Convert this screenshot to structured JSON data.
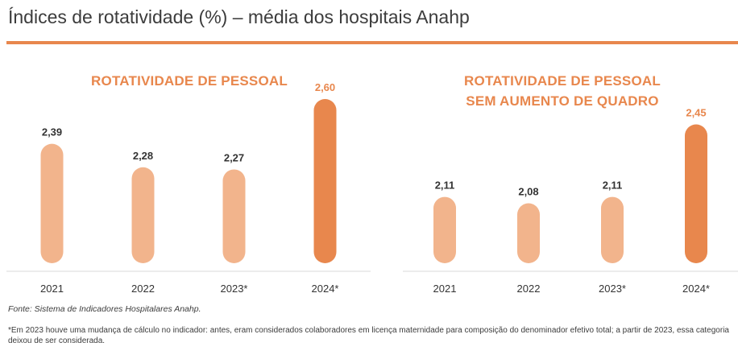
{
  "title": "Índices de rotatividade (%) – média dos hospitais Anahp",
  "colors": {
    "accent": "#e8874d",
    "bar_light": "#f2b48c",
    "bar_highlight": "#e8874d"
  },
  "chart_data": [
    {
      "type": "bar",
      "title_lines": [
        "ROTATIVIDADE DE PESSOAL"
      ],
      "categories": [
        "2021",
        "2022",
        "2023*",
        "2024*"
      ],
      "values": [
        2.39,
        2.28,
        2.27,
        2.6
      ],
      "value_labels": [
        "2,39",
        "2,28",
        "2,27",
        "2,60"
      ],
      "highlight_index": 3
    },
    {
      "type": "bar",
      "title_lines": [
        "ROTATIVIDADE DE PESSOAL",
        "SEM AUMENTO DE QUADRO"
      ],
      "categories": [
        "2021",
        "2022",
        "2023*",
        "2024*"
      ],
      "values": [
        2.11,
        2.08,
        2.11,
        2.45
      ],
      "value_labels": [
        "2,11",
        "2,08",
        "2,11",
        "2,45"
      ],
      "highlight_index": 3
    }
  ],
  "source": "Fonte: Sistema de Indicadores Hospitalares Anahp.",
  "footnote": "*Em 2023 houve uma mudança de cálculo no indicador: antes, eram considerados colaboradores em licença maternidade para composição do denominador efetivo total; a partir de 2023, essa categoria deixou de ser considerada."
}
